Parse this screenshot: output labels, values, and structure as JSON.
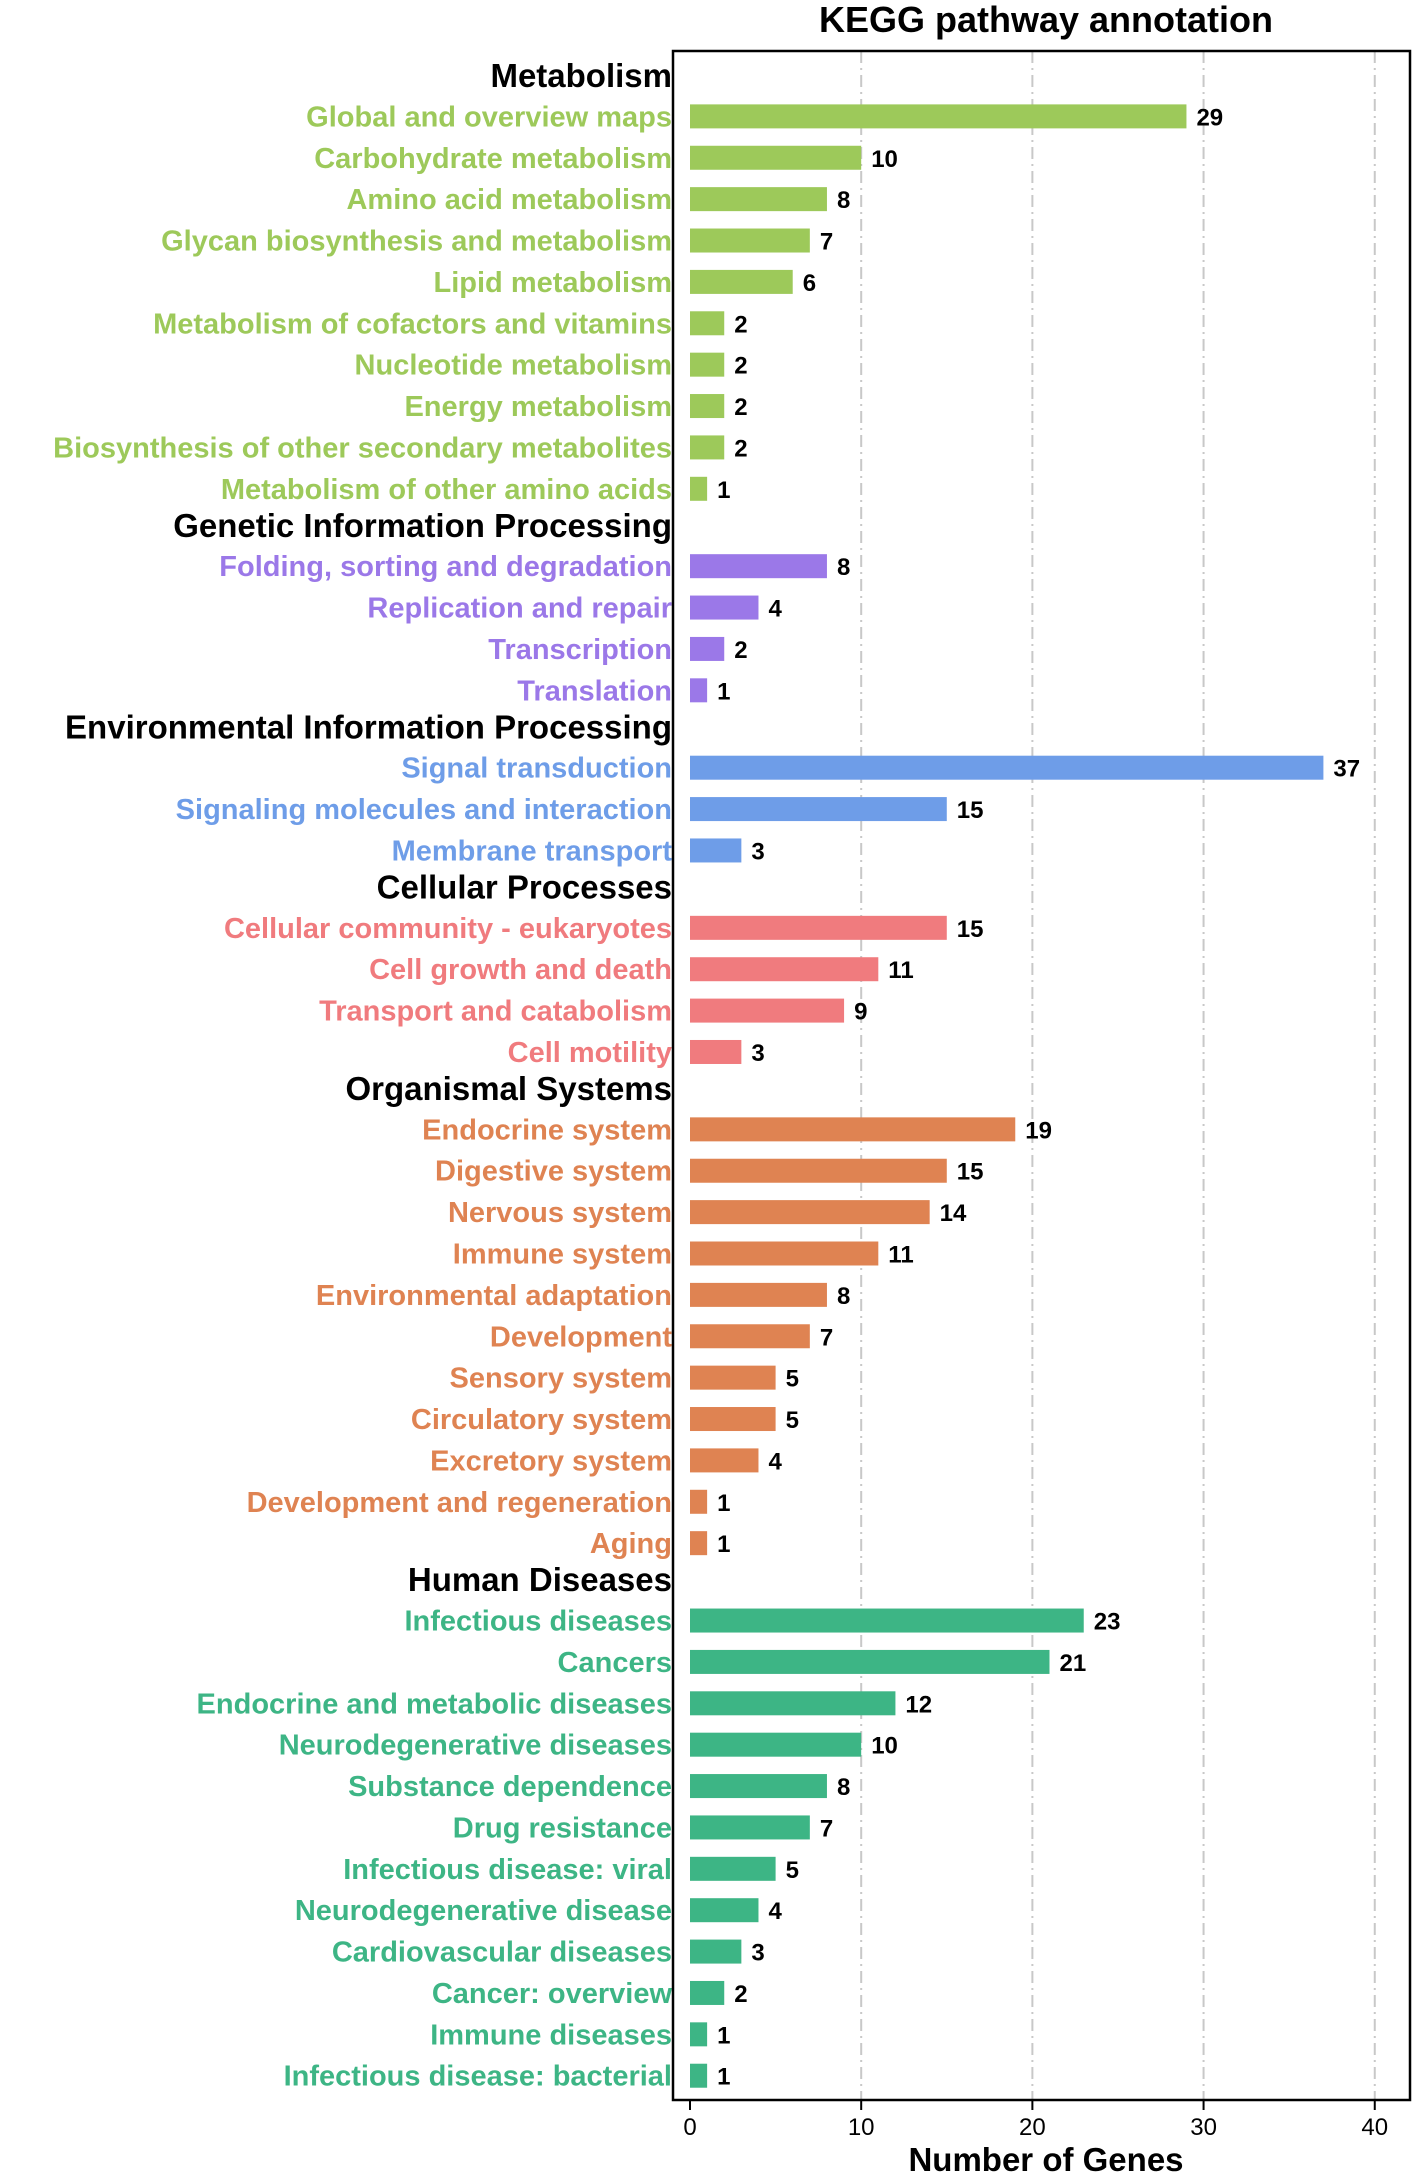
{
  "chart_data": {
    "type": "bar",
    "orientation": "horizontal",
    "title": "KEGG pathway annotation",
    "xlabel": "Number of Genes",
    "ylabel": "",
    "xlim": [
      0,
      42
    ],
    "xticks": [
      0,
      10,
      20,
      30,
      40
    ],
    "grid": "vertical dashed at 10, 20, 30",
    "groups": [
      {
        "name": "Metabolism",
        "color": "#9dc95a",
        "items": [
          {
            "label": "Global and overview maps",
            "value": 29
          },
          {
            "label": "Carbohydrate metabolism",
            "value": 10
          },
          {
            "label": "Amino acid metabolism",
            "value": 8
          },
          {
            "label": "Glycan biosynthesis and metabolism",
            "value": 7
          },
          {
            "label": "Lipid metabolism",
            "value": 6
          },
          {
            "label": "Metabolism of cofactors and vitamins",
            "value": 2
          },
          {
            "label": "Nucleotide metabolism",
            "value": 2
          },
          {
            "label": "Energy metabolism",
            "value": 2
          },
          {
            "label": "Biosynthesis of other secondary metabolites",
            "value": 2
          },
          {
            "label": "Metabolism of other amino acids",
            "value": 1
          }
        ]
      },
      {
        "name": "Genetic Information Processing",
        "color": "#9b78e8",
        "items": [
          {
            "label": "Folding, sorting and degradation",
            "value": 8
          },
          {
            "label": "Replication and repair",
            "value": 4
          },
          {
            "label": "Transcription",
            "value": 2
          },
          {
            "label": "Translation",
            "value": 1
          }
        ]
      },
      {
        "name": "Environmental Information Processing",
        "color": "#6e9de8",
        "items": [
          {
            "label": "Signal transduction",
            "value": 37
          },
          {
            "label": "Signaling molecules and interaction",
            "value": 15
          },
          {
            "label": "Membrane transport",
            "value": 3
          }
        ]
      },
      {
        "name": "Cellular Processes",
        "color": "#f07b7e",
        "items": [
          {
            "label": "Cellular community - eukaryotes",
            "value": 15
          },
          {
            "label": "Cell growth and death",
            "value": 11
          },
          {
            "label": "Transport and catabolism",
            "value": 9
          },
          {
            "label": "Cell motility",
            "value": 3
          }
        ]
      },
      {
        "name": "Organismal Systems",
        "color": "#df8352",
        "items": [
          {
            "label": "Endocrine system",
            "value": 19
          },
          {
            "label": "Digestive system",
            "value": 15
          },
          {
            "label": "Nervous system",
            "value": 14
          },
          {
            "label": "Immune system",
            "value": 11
          },
          {
            "label": "Environmental adaptation",
            "value": 8
          },
          {
            "label": "Development",
            "value": 7
          },
          {
            "label": "Sensory system",
            "value": 5
          },
          {
            "label": "Circulatory system",
            "value": 5
          },
          {
            "label": "Excretory system",
            "value": 4
          },
          {
            "label": "Development and regeneration",
            "value": 1
          },
          {
            "label": "Aging",
            "value": 1
          }
        ]
      },
      {
        "name": "Human Diseases",
        "color": "#3db585",
        "items": [
          {
            "label": "Infectious diseases",
            "value": 23
          },
          {
            "label": "Cancers",
            "value": 21
          },
          {
            "label": "Endocrine and metabolic diseases",
            "value": 12
          },
          {
            "label": "Neurodegenerative diseases",
            "value": 10
          },
          {
            "label": "Substance dependence",
            "value": 8
          },
          {
            "label": "Drug resistance",
            "value": 7
          },
          {
            "label": "Infectious disease: viral",
            "value": 5
          },
          {
            "label": "Neurodegenerative disease",
            "value": 4
          },
          {
            "label": "Cardiovascular diseases",
            "value": 3
          },
          {
            "label": "Cancer: overview",
            "value": 2
          },
          {
            "label": "Immune diseases",
            "value": 1
          },
          {
            "label": "Infectious disease: bacterial",
            "value": 1
          }
        ]
      }
    ]
  }
}
